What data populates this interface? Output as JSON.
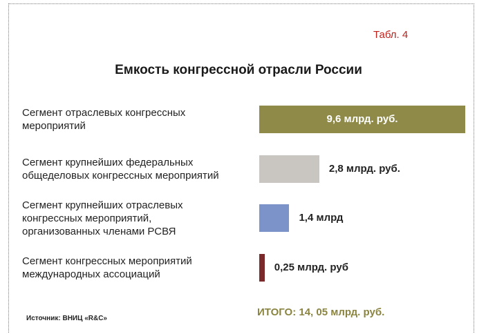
{
  "chart_data": {
    "type": "bar",
    "orientation": "horizontal",
    "table_label": "Табл. 4",
    "title": "Емкость конгрессной отрасли России",
    "categories": [
      "Сегмент отраслевых конгрессных мероприятий",
      "Сегмент крупнейших федеральных общеделовых конгрессных мероприятий",
      "Сегмент крупнейших отраслевых конгрессных мероприятий, организованных членами РСВЯ",
      "Сегмент конгрессных мероприятий международных ассоциаций"
    ],
    "values": [
      9.6,
      2.8,
      1.4,
      0.25
    ],
    "value_labels": [
      "9,6 млрд. руб.",
      "2,8 млрд. руб.",
      "1,4 млрд",
      "0,25 млрд. руб"
    ],
    "colors": [
      "#8f8a48",
      "#c9c6c1",
      "#7b93c9",
      "#7b2a2c"
    ],
    "source": "Источник: ВНИЦ «R&C»",
    "total": "ИТОГО: 14, 05 млрд. руб."
  }
}
